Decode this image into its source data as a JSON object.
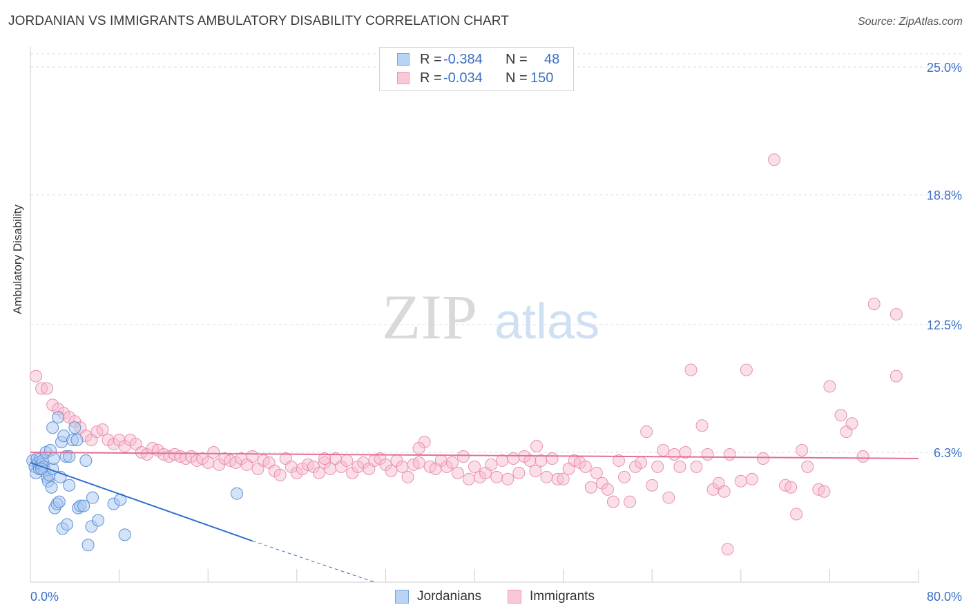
{
  "title": "JORDANIAN VS IMMIGRANTS AMBULATORY DISABILITY CORRELATION CHART",
  "source": "Source: ZipAtlas.com",
  "watermark": {
    "zip": "ZIP",
    "atlas": "atlas"
  },
  "colors": {
    "blue_fill": "#a9c8f0",
    "blue_stroke": "#5b8fd6",
    "blue_line": "#2f6fd0",
    "pink_fill": "#f6b8cc",
    "pink_stroke": "#e890ad",
    "pink_line": "#e46f98",
    "tick_label": "#3b6fc6",
    "grid": "#dddddd"
  },
  "legend": {
    "rows": [
      {
        "r_label": "R =",
        "r_value": "-0.384",
        "n_label": "N =",
        "n_value": "48"
      },
      {
        "r_label": "R =",
        "r_value": "-0.034",
        "n_label": "N =",
        "n_value": "150"
      }
    ]
  },
  "bottom_legend": {
    "jordanians": "Jordanians",
    "immigrants": "Immigrants"
  },
  "chart_data": {
    "type": "scatter",
    "title": "JORDANIAN VS IMMIGRANTS AMBULATORY DISABILITY CORRELATION CHART",
    "ylabel": "Ambulatory Disability",
    "xlabel": "",
    "xlim": [
      0,
      80
    ],
    "ylim": [
      0,
      25.0
    ],
    "x_tick_labels": {
      "min": "0.0%",
      "max": "80.0%"
    },
    "y_ticks": [
      {
        "value": 6.3,
        "label": "6.3%"
      },
      {
        "value": 12.5,
        "label": "12.5%"
      },
      {
        "value": 18.8,
        "label": "18.8%"
      },
      {
        "value": 25.0,
        "label": "25.0%"
      }
    ],
    "series": [
      {
        "name": "Jordanians",
        "r": -0.384,
        "n": 48,
        "trend": {
          "x0": 0,
          "y0": 5.8,
          "x1": 20,
          "y1": 2.0,
          "dash_to_x": 31,
          "dash_to_y": 0
        },
        "points": [
          [
            0.2,
            5.9
          ],
          [
            0.4,
            5.6
          ],
          [
            0.5,
            5.3
          ],
          [
            0.6,
            6.0
          ],
          [
            0.7,
            5.8
          ],
          [
            0.8,
            5.5
          ],
          [
            0.9,
            6.0
          ],
          [
            1.0,
            5.7
          ],
          [
            1.1,
            5.9
          ],
          [
            1.2,
            5.6
          ],
          [
            1.3,
            5.4
          ],
          [
            1.4,
            6.3
          ],
          [
            1.5,
            5.1
          ],
          [
            1.6,
            4.9
          ],
          [
            1.7,
            5.2
          ],
          [
            1.8,
            6.4
          ],
          [
            1.9,
            4.6
          ],
          [
            2.0,
            5.5
          ],
          [
            2.1,
            6.0
          ],
          [
            2.2,
            3.6
          ],
          [
            2.4,
            3.8
          ],
          [
            2.5,
            8.0
          ],
          [
            2.6,
            3.9
          ],
          [
            2.7,
            5.1
          ],
          [
            2.8,
            6.8
          ],
          [
            2.9,
            2.6
          ],
          [
            3.0,
            7.1
          ],
          [
            3.2,
            6.1
          ],
          [
            3.3,
            2.8
          ],
          [
            3.5,
            6.1
          ],
          [
            3.5,
            4.7
          ],
          [
            3.8,
            6.9
          ],
          [
            4.0,
            7.5
          ],
          [
            4.2,
            6.9
          ],
          [
            4.3,
            3.6
          ],
          [
            4.5,
            3.7
          ],
          [
            4.8,
            3.7
          ],
          [
            5.0,
            5.9
          ],
          [
            5.2,
            1.8
          ],
          [
            5.5,
            2.7
          ],
          [
            5.6,
            4.1
          ],
          [
            6.1,
            3.0
          ],
          [
            7.5,
            3.8
          ],
          [
            8.1,
            4.0
          ],
          [
            8.5,
            2.3
          ],
          [
            18.6,
            4.3
          ],
          [
            2.0,
            7.5
          ],
          [
            1.0,
            5.5
          ]
        ]
      },
      {
        "name": "Immigrants",
        "r": -0.034,
        "n": 150,
        "trend": {
          "x0": 0,
          "y0": 6.3,
          "x1": 80,
          "y1": 6.0
        },
        "points": [
          [
            0.5,
            10.0
          ],
          [
            1.0,
            9.4
          ],
          [
            1.5,
            9.4
          ],
          [
            2.0,
            8.6
          ],
          [
            2.5,
            8.4
          ],
          [
            3.0,
            8.2
          ],
          [
            3.5,
            8.0
          ],
          [
            4.0,
            7.8
          ],
          [
            4.5,
            7.5
          ],
          [
            5.0,
            7.1
          ],
          [
            5.5,
            6.9
          ],
          [
            6.0,
            7.3
          ],
          [
            6.5,
            7.4
          ],
          [
            7.0,
            6.9
          ],
          [
            7.5,
            6.7
          ],
          [
            8.0,
            6.9
          ],
          [
            8.5,
            6.6
          ],
          [
            9.0,
            6.9
          ],
          [
            9.5,
            6.7
          ],
          [
            10.0,
            6.3
          ],
          [
            10.5,
            6.2
          ],
          [
            11.0,
            6.5
          ],
          [
            11.5,
            6.4
          ],
          [
            12.0,
            6.2
          ],
          [
            12.5,
            6.1
          ],
          [
            13.0,
            6.2
          ],
          [
            13.5,
            6.1
          ],
          [
            14.0,
            6.0
          ],
          [
            14.5,
            6.1
          ],
          [
            15.0,
            5.9
          ],
          [
            15.5,
            6.0
          ],
          [
            16.0,
            5.8
          ],
          [
            16.5,
            6.3
          ],
          [
            17.0,
            5.7
          ],
          [
            17.5,
            6.0
          ],
          [
            18.0,
            5.9
          ],
          [
            18.5,
            5.8
          ],
          [
            19.0,
            6.0
          ],
          [
            19.5,
            5.7
          ],
          [
            20.0,
            6.1
          ],
          [
            20.5,
            5.5
          ],
          [
            21.0,
            5.9
          ],
          [
            21.5,
            5.8
          ],
          [
            22.0,
            5.4
          ],
          [
            22.5,
            5.2
          ],
          [
            23.0,
            6.0
          ],
          [
            23.5,
            5.6
          ],
          [
            24.0,
            5.3
          ],
          [
            24.5,
            5.5
          ],
          [
            25.0,
            5.7
          ],
          [
            25.5,
            5.6
          ],
          [
            26.0,
            5.3
          ],
          [
            26.5,
            5.8
          ],
          [
            27.0,
            5.5
          ],
          [
            27.5,
            6.0
          ],
          [
            28.0,
            5.6
          ],
          [
            28.5,
            5.9
          ],
          [
            29.0,
            5.3
          ],
          [
            29.5,
            5.6
          ],
          [
            30.0,
            5.8
          ],
          [
            30.5,
            5.5
          ],
          [
            31.0,
            5.9
          ],
          [
            31.5,
            6.0
          ],
          [
            32.0,
            5.7
          ],
          [
            32.5,
            5.4
          ],
          [
            33.0,
            5.9
          ],
          [
            33.5,
            5.6
          ],
          [
            34.0,
            5.1
          ],
          [
            34.5,
            5.7
          ],
          [
            35.0,
            5.8
          ],
          [
            35.5,
            6.8
          ],
          [
            36.0,
            5.6
          ],
          [
            36.5,
            5.5
          ],
          [
            37.0,
            5.9
          ],
          [
            37.5,
            5.6
          ],
          [
            38.0,
            5.8
          ],
          [
            38.5,
            5.3
          ],
          [
            39.0,
            6.1
          ],
          [
            39.5,
            5.0
          ],
          [
            40.0,
            5.6
          ],
          [
            40.5,
            5.1
          ],
          [
            41.0,
            5.3
          ],
          [
            41.5,
            5.7
          ],
          [
            42.0,
            5.1
          ],
          [
            42.5,
            5.9
          ],
          [
            43.0,
            5.0
          ],
          [
            43.5,
            6.0
          ],
          [
            44.0,
            5.3
          ],
          [
            44.5,
            6.1
          ],
          [
            45.0,
            5.9
          ],
          [
            45.5,
            5.4
          ],
          [
            46.0,
            5.9
          ],
          [
            46.5,
            5.1
          ],
          [
            47.0,
            6.0
          ],
          [
            47.5,
            5.0
          ],
          [
            48.0,
            5.0
          ],
          [
            48.5,
            5.5
          ],
          [
            49.0,
            5.9
          ],
          [
            49.5,
            5.8
          ],
          [
            50.0,
            5.6
          ],
          [
            50.5,
            4.6
          ],
          [
            51.0,
            5.3
          ],
          [
            51.5,
            4.8
          ],
          [
            52.0,
            4.5
          ],
          [
            52.5,
            3.9
          ],
          [
            53.0,
            5.9
          ],
          [
            53.5,
            5.1
          ],
          [
            54.0,
            3.9
          ],
          [
            54.5,
            5.6
          ],
          [
            55.0,
            5.8
          ],
          [
            55.5,
            7.3
          ],
          [
            56.0,
            4.7
          ],
          [
            56.5,
            5.6
          ],
          [
            57.0,
            6.4
          ],
          [
            57.5,
            4.1
          ],
          [
            58.0,
            6.2
          ],
          [
            58.5,
            5.6
          ],
          [
            59.0,
            6.3
          ],
          [
            59.5,
            10.3
          ],
          [
            60.0,
            5.6
          ],
          [
            60.5,
            7.6
          ],
          [
            61.0,
            6.2
          ],
          [
            61.5,
            4.5
          ],
          [
            62.0,
            4.8
          ],
          [
            62.5,
            4.4
          ],
          [
            63.0,
            6.2
          ],
          [
            64.0,
            4.9
          ],
          [
            65.0,
            5.0
          ],
          [
            66.0,
            6.0
          ],
          [
            67.0,
            20.5
          ],
          [
            68.0,
            4.7
          ],
          [
            69.0,
            3.3
          ],
          [
            69.5,
            6.4
          ],
          [
            70.0,
            5.6
          ],
          [
            71.0,
            4.5
          ],
          [
            72.0,
            9.5
          ],
          [
            73.0,
            8.1
          ],
          [
            73.5,
            7.3
          ],
          [
            74.0,
            7.7
          ],
          [
            75.0,
            6.1
          ],
          [
            76.0,
            13.5
          ],
          [
            78.0,
            13.0
          ],
          [
            78.0,
            10.0
          ],
          [
            64.5,
            10.3
          ],
          [
            68.5,
            4.6
          ],
          [
            71.5,
            4.4
          ],
          [
            35.0,
            6.5
          ],
          [
            26.5,
            6.0
          ],
          [
            62.8,
            1.6
          ],
          [
            45.6,
            6.6
          ]
        ]
      }
    ]
  }
}
